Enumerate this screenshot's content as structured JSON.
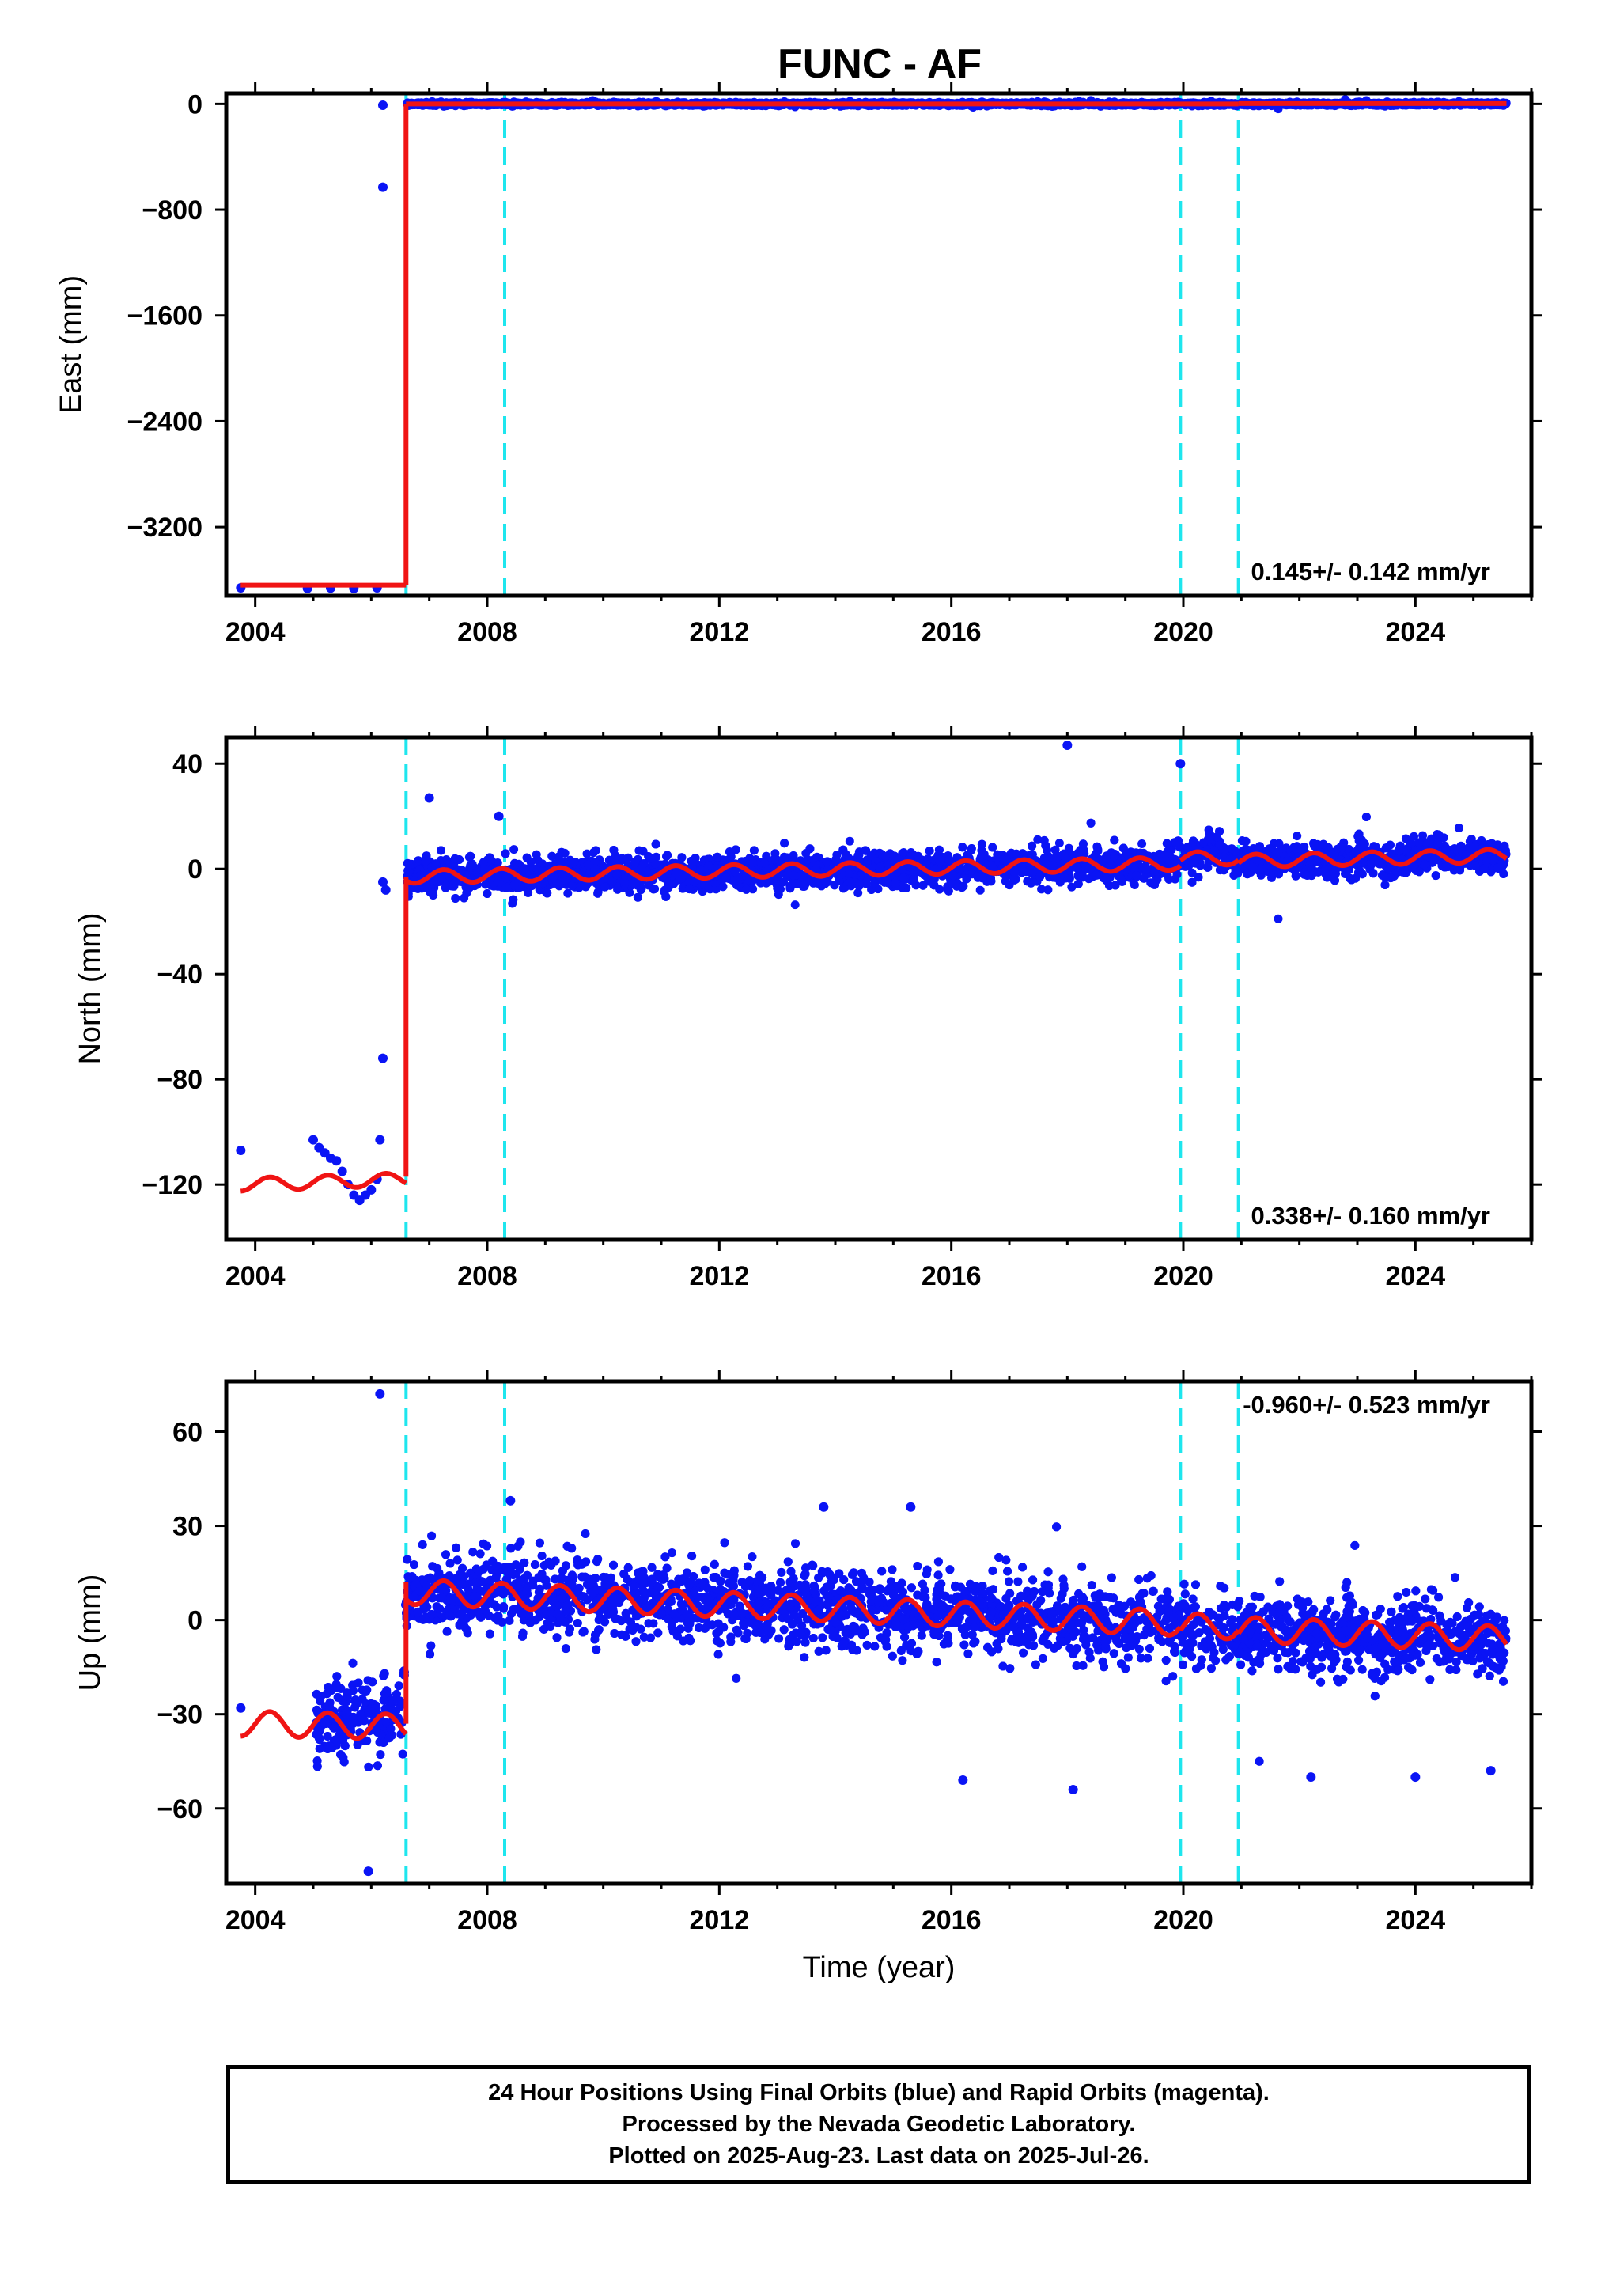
{
  "title": "FUNC - AF",
  "colors": {
    "data": "#0a14f5",
    "model": "#f01414",
    "offsets": "#1ee6ee",
    "frame": "#000000"
  },
  "chart_data": [
    {
      "type": "scatter",
      "name": "east",
      "ylabel": "East (mm)",
      "xlabel": "",
      "xlim": [
        2003.5,
        2026.0
      ],
      "ylim": [
        -3720,
        80
      ],
      "x_ticks": [
        2004,
        2008,
        2012,
        2016,
        2020,
        2024
      ],
      "y_ticks": [
        0,
        -800,
        -1600,
        -2400,
        -3200
      ],
      "grid": false,
      "rate_label": "0.145+/- 0.142 mm/yr",
      "rate_position": "bottom-right",
      "offset_lines": [
        2006.6,
        2008.3,
        2019.95,
        2020.95
      ],
      "data_points": [
        [
          2003.75,
          -3660
        ],
        [
          2004.9,
          -3665
        ],
        [
          2005.3,
          -3662
        ],
        [
          2005.7,
          -3665
        ],
        [
          2006.1,
          -3660
        ],
        [
          2006.2,
          -630
        ],
        [
          2006.2,
          -10
        ]
      ],
      "data_band": {
        "x_start": 2006.62,
        "x_end": 2025.57,
        "center": 0,
        "half_width": 10,
        "count": 4200
      },
      "model_segments": [
        {
          "x": [
            2003.75,
            2006.6
          ],
          "y": [
            -3640,
            -3640
          ]
        },
        {
          "x": [
            2006.6,
            2006.6
          ],
          "y": [
            -3640,
            0
          ]
        },
        {
          "x": [
            2006.6,
            2020.95
          ],
          "y": [
            0,
            0
          ]
        },
        {
          "x": [
            2020.95,
            2025.57
          ],
          "y": [
            3,
            3
          ]
        }
      ]
    },
    {
      "type": "scatter",
      "name": "north",
      "ylabel": "North (mm)",
      "xlabel": "",
      "xlim": [
        2003.5,
        2026.0
      ],
      "ylim": [
        -141,
        50
      ],
      "x_ticks": [
        2004,
        2008,
        2012,
        2016,
        2020,
        2024
      ],
      "y_ticks": [
        40,
        0,
        -40,
        -80,
        -120
      ],
      "grid": false,
      "rate_label": "0.338+/- 0.160 mm/yr",
      "rate_position": "bottom-right",
      "offset_lines": [
        2006.6,
        2008.3,
        2019.95,
        2020.95
      ],
      "data_points": [
        [
          2003.75,
          -107
        ],
        [
          2005.0,
          -103
        ],
        [
          2005.1,
          -106
        ],
        [
          2005.2,
          -108
        ],
        [
          2005.3,
          -110
        ],
        [
          2005.4,
          -111
        ],
        [
          2005.5,
          -115
        ],
        [
          2005.6,
          -120
        ],
        [
          2005.7,
          -124
        ],
        [
          2005.8,
          -126
        ],
        [
          2005.9,
          -124
        ],
        [
          2006.0,
          -122
        ],
        [
          2006.1,
          -118
        ],
        [
          2006.15,
          -103
        ],
        [
          2006.2,
          -72
        ],
        [
          2006.2,
          -5
        ],
        [
          2006.25,
          -8
        ],
        [
          2018.0,
          47
        ],
        [
          2019.95,
          40
        ],
        [
          2007.0,
          27
        ],
        [
          2008.2,
          20
        ]
      ],
      "data_band": {
        "x_start": 2006.62,
        "x_end": 2025.57,
        "trend": [
          [
            2006.62,
            -3
          ],
          [
            2012.0,
            -1
          ],
          [
            2016.0,
            0
          ],
          [
            2019.9,
            2
          ],
          [
            2020.5,
            8
          ],
          [
            2021.0,
            3
          ],
          [
            2025.57,
            5
          ]
        ],
        "half_width": 6,
        "count": 4200
      },
      "model_segments": [
        {
          "x": [
            2003.75,
            2006.6
          ],
          "y": [
            -120,
            -118
          ],
          "seasonal_amplitude": 2.5
        },
        {
          "x": [
            2006.6,
            2006.6
          ],
          "y": [
            -117,
            -3
          ]
        },
        {
          "x": [
            2006.6,
            2019.95
          ],
          "y": [
            -3,
            2
          ],
          "seasonal_amplitude": 2.5
        },
        {
          "x": [
            2019.95,
            2020.95
          ],
          "y": [
            4,
            4
          ],
          "seasonal_amplitude": 2.5
        },
        {
          "x": [
            2020.95,
            2025.57
          ],
          "y": [
            3,
            5
          ],
          "seasonal_amplitude": 2.5
        }
      ]
    },
    {
      "type": "scatter",
      "name": "up",
      "ylabel": "Up (mm)",
      "xlabel": "Time (year)",
      "xlim": [
        2003.5,
        2026.0
      ],
      "ylim": [
        -84,
        76
      ],
      "x_ticks": [
        2004,
        2008,
        2012,
        2016,
        2020,
        2024
      ],
      "y_ticks": [
        60,
        30,
        0,
        -30,
        -60
      ],
      "grid": false,
      "rate_label": "-0.960+/- 0.523 mm/yr",
      "rate_position": "top-right",
      "offset_lines": [
        2006.6,
        2008.3,
        2019.95,
        2020.95
      ],
      "data_points": [
        [
          2003.75,
          -28
        ],
        [
          2006.15,
          72
        ],
        [
          2005.95,
          -80
        ],
        [
          2008.4,
          38
        ],
        [
          2013.8,
          36
        ],
        [
          2015.3,
          36
        ],
        [
          2016.2,
          -51
        ],
        [
          2018.1,
          -54
        ],
        [
          2022.2,
          -50
        ],
        [
          2024.0,
          -50
        ],
        [
          2025.3,
          -48
        ]
      ],
      "data_band": {
        "x_start": 2005.05,
        "x_end": 2025.57,
        "trend": [
          [
            2005.05,
            -33
          ],
          [
            2006.55,
            -30
          ],
          [
            2006.62,
            9
          ],
          [
            2008.3,
            9
          ],
          [
            2019.95,
            -2
          ],
          [
            2021.0,
            -4
          ],
          [
            2025.57,
            -7
          ]
        ],
        "half_width": 11,
        "count": 5200
      },
      "model_segments": [
        {
          "x": [
            2003.75,
            2006.6
          ],
          "y": [
            -33,
            -34
          ],
          "seasonal_amplitude": 4.0
        },
        {
          "x": [
            2006.6,
            2006.6
          ],
          "y": [
            -33,
            12
          ]
        },
        {
          "x": [
            2006.6,
            2019.95
          ],
          "y": [
            9,
            -1
          ],
          "seasonal_amplitude": 4.0
        },
        {
          "x": [
            2019.95,
            2020.95
          ],
          "y": [
            -2,
            -2
          ],
          "seasonal_amplitude": 4.0
        },
        {
          "x": [
            2020.95,
            2025.57
          ],
          "y": [
            -3,
            -6
          ],
          "seasonal_amplitude": 4.0
        }
      ]
    }
  ],
  "footer": {
    "line1": "24 Hour Positions Using Final Orbits (blue) and Rapid Orbits (magenta).",
    "line2": "Processed by the Nevada Geodetic Laboratory.",
    "line3": "Plotted on 2025-Aug-23. Last data on 2025-Jul-26."
  }
}
